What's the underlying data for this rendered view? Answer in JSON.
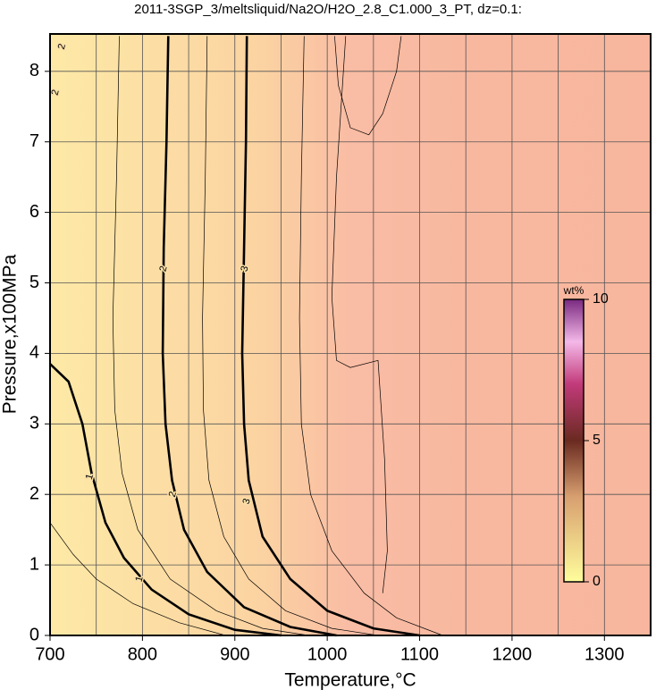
{
  "chart_data": {
    "type": "contour",
    "title": "2011-3SGP_3/meltsliquid/Na2O/H2O_2.8_C1.000_3_PT, dz=0.1:",
    "x_label": "Temperature,°C",
    "y_label": "Pressure,x100MPa",
    "xlim": [
      700,
      1350
    ],
    "ylim": [
      0,
      8.53
    ],
    "xticks": [
      700,
      800,
      900,
      1000,
      1100,
      1200,
      1300
    ],
    "xminor": [
      750,
      850,
      950,
      1050,
      1150,
      1250
    ],
    "yticks": [
      0,
      1,
      2,
      3,
      4,
      5,
      6,
      7,
      8
    ],
    "grid": true,
    "contours": [
      {
        "level": 1,
        "bold": true,
        "x": [
          700,
          720,
          735,
          745,
          760,
          780,
          810,
          850,
          900,
          950
        ],
        "y": [
          3.85,
          3.6,
          3.0,
          2.3,
          1.6,
          1.1,
          0.65,
          0.3,
          0.08,
          0
        ]
      },
      {
        "level": 2,
        "bold": true,
        "x": [
          828,
          826,
          823,
          822,
          825,
          832,
          845,
          870,
          910,
          960,
          1010
        ],
        "y": [
          8.5,
          7,
          5.5,
          4,
          3,
          2.2,
          1.5,
          0.9,
          0.4,
          0.12,
          0
        ]
      },
      {
        "level": 3,
        "bold": true,
        "x": [
          913,
          912,
          910,
          908,
          910,
          915,
          930,
          960,
          1000,
          1050,
          1100
        ],
        "y": [
          8.5,
          7,
          5.5,
          4,
          3,
          2.2,
          1.4,
          0.8,
          0.35,
          0.1,
          0
        ]
      },
      {
        "level": 1.5,
        "bold": false,
        "x": [
          775,
          772,
          768,
          770,
          778,
          795,
          830,
          880,
          930,
          980
        ],
        "y": [
          8.5,
          6.5,
          4.5,
          3.2,
          2.3,
          1.5,
          0.8,
          0.35,
          0.1,
          0
        ]
      },
      {
        "level": 2.5,
        "bold": false,
        "x": [
          870,
          868,
          865,
          866,
          872,
          888,
          915,
          955,
          1005,
          1055
        ],
        "y": [
          8.5,
          6.5,
          4.5,
          3.2,
          2.2,
          1.4,
          0.8,
          0.35,
          0.1,
          0
        ]
      },
      {
        "level": 3.5,
        "bold": false,
        "x": [
          975,
          972,
          970,
          972,
          982,
          1005,
          1040,
          1075,
          1125
        ],
        "y": [
          8.5,
          6.5,
          4.5,
          3.0,
          2.0,
          1.2,
          0.6,
          0.25,
          0
        ]
      },
      {
        "level": 3.9,
        "bold": false,
        "x": [
          1008,
          1012,
          1025,
          1045,
          1060,
          1075,
          1080
        ],
        "y": [
          8.5,
          7.8,
          7.2,
          7.1,
          7.4,
          8.0,
          8.5
        ]
      },
      {
        "level": 3.8,
        "bold": false,
        "x": [
          1020,
          1010,
          1005,
          1010,
          1025,
          1055,
          1062,
          1065,
          1060
        ],
        "y": [
          8.5,
          6.5,
          4.8,
          3.9,
          3.8,
          3.9,
          2.5,
          1.2,
          0.6
        ]
      },
      {
        "level": 0.5,
        "bold": false,
        "x": [
          700,
          725,
          750,
          790,
          840,
          890
        ],
        "y": [
          1.6,
          1.15,
          0.8,
          0.45,
          0.18,
          0
        ]
      }
    ],
    "labels": [
      {
        "text": "1",
        "x": 743,
        "y": 2.25
      },
      {
        "text": "1",
        "x": 797,
        "y": 0.8
      },
      {
        "text": "2",
        "x": 823,
        "y": 5.2
      },
      {
        "text": "2",
        "x": 833,
        "y": 2.0
      },
      {
        "text": "3",
        "x": 911,
        "y": 5.2
      },
      {
        "text": "3",
        "x": 913,
        "y": 1.9
      },
      {
        "text": "2",
        "x": 706,
        "y": 7.7
      },
      {
        "text": "2",
        "x": 713,
        "y": 8.35
      }
    ],
    "colorbar": {
      "label": "wt%",
      "lim": [
        0,
        10
      ],
      "ticks": [
        0,
        5,
        10
      ]
    }
  }
}
